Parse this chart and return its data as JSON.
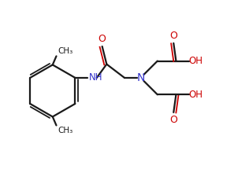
{
  "bg_color": "#ffffff",
  "bond_color": "#1a1a1a",
  "n_color": "#3333cc",
  "o_color": "#cc0000",
  "lw": 1.6,
  "lw_dbl": 1.3,
  "figsize": [
    3.16,
    2.34
  ],
  "dpi": 100,
  "xlim": [
    0,
    10
  ],
  "ylim": [
    0,
    7.4
  ]
}
